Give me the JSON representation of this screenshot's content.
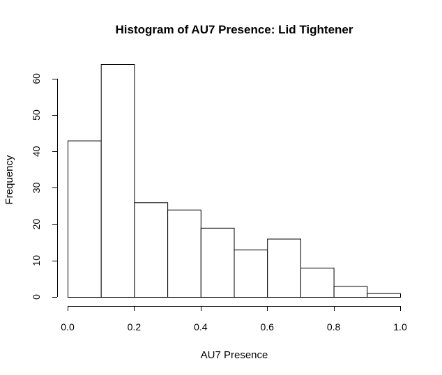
{
  "chart_data": {
    "type": "bar",
    "title": "Histogram of AU7 Presence: Lid Tightener",
    "xlabel": "AU7 Presence",
    "ylabel": "Frequency",
    "bins": [
      {
        "x0": 0.0,
        "x1": 0.1,
        "count": 43
      },
      {
        "x0": 0.1,
        "x1": 0.2,
        "count": 64
      },
      {
        "x0": 0.2,
        "x1": 0.3,
        "count": 26
      },
      {
        "x0": 0.3,
        "x1": 0.4,
        "count": 24
      },
      {
        "x0": 0.4,
        "x1": 0.5,
        "count": 19
      },
      {
        "x0": 0.5,
        "x1": 0.6,
        "count": 13
      },
      {
        "x0": 0.6,
        "x1": 0.7,
        "count": 16
      },
      {
        "x0": 0.7,
        "x1": 0.8,
        "count": 8
      },
      {
        "x0": 0.8,
        "x1": 0.9,
        "count": 3
      },
      {
        "x0": 0.9,
        "x1": 1.0,
        "count": 1
      }
    ],
    "xlim": [
      0,
      1
    ],
    "ylim": [
      0,
      64
    ],
    "x_ticks": [
      0.0,
      0.2,
      0.4,
      0.6,
      0.8,
      1.0
    ],
    "x_tick_labels": [
      "0.0",
      "0.2",
      "0.4",
      "0.6",
      "0.8",
      "1.0"
    ],
    "y_ticks": [
      0,
      10,
      20,
      30,
      40,
      50,
      60
    ],
    "y_tick_labels": [
      "0",
      "10",
      "20",
      "30",
      "40",
      "50",
      "60"
    ],
    "grid": false,
    "legend": "none"
  }
}
